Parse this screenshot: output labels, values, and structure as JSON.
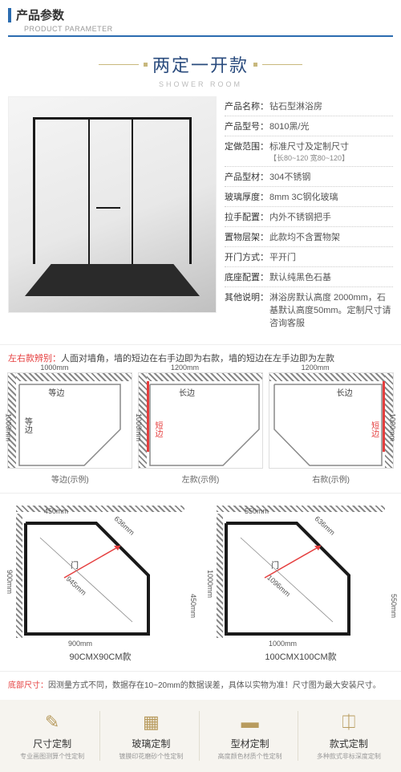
{
  "header": {
    "title": "产品参数",
    "subtitle": "PRODUCT PARAMETER"
  },
  "style": {
    "title": "两定一开款",
    "subtitle": "SHOWER ROOM"
  },
  "specs": [
    {
      "label": "产品名称：",
      "value": "钻石型淋浴房"
    },
    {
      "label": "产品型号：",
      "value": "8010黑/光"
    },
    {
      "label": "定做范围：",
      "value": "标准尺寸及定制尺寸",
      "sub": "【长80~120 宽80~120】"
    },
    {
      "label": "产品型材：",
      "value": "304不锈钢"
    },
    {
      "label": "玻璃厚度：",
      "value": "8mm 3C钢化玻璃"
    },
    {
      "label": "拉手配置：",
      "value": "内外不锈钢把手"
    },
    {
      "label": "置物层架：",
      "value": "此款均不含置物架"
    },
    {
      "label": "开门方式：",
      "value": "平开门"
    },
    {
      "label": "底座配置：",
      "value": "默认纯黑色石基"
    },
    {
      "label": "其他说明：",
      "value": "淋浴房默认高度 2000mm，石基默认高度50mm。定制尺寸请咨询客服"
    }
  ],
  "distinguish": {
    "label": "左右款辨别：",
    "text": "人面对墙角，墙的短边在右手边即为右款，墙的短边在左手边即为左款"
  },
  "diagrams": [
    {
      "caption": "等边(示例)",
      "top_dim": "1000mm",
      "left_dim": "1000mm",
      "lbl1": "等边",
      "lbl2": "等边"
    },
    {
      "caption": "左款(示例)",
      "top_dim": "1200mm",
      "left_dim": "1000mm",
      "lbl1": "长边",
      "short": "短边",
      "short_side": "left"
    },
    {
      "caption": "右款(示例)",
      "top_dim": "1200mm",
      "right_dim": "1000mm",
      "lbl1": "长边",
      "short": "短边",
      "short_side": "right"
    }
  ],
  "size_diagrams": [
    {
      "caption": "90CMX90CM款",
      "top_half": "450mm",
      "diag_top": "636mm",
      "left_half": "900mm",
      "inner_diag": "945mm",
      "right_half": "450mm",
      "bottom": "900mm",
      "door": "门"
    },
    {
      "caption": "100CMX100CM款",
      "top_half": "550mm",
      "diag_top": "636mm",
      "left_half": "1000mm",
      "inner_diag": "1096mm",
      "right_half": "550mm",
      "bottom": "1000mm",
      "door": "门"
    }
  ],
  "bottom_note": {
    "label": "底部尺寸：",
    "text": "因测量方式不同，数据存在10~20mm的数据误差，具体以实物为准！尺寸图为最大安装尺寸。"
  },
  "footer": [
    {
      "icon": "✎",
      "title": "尺寸定制",
      "sub": "专业画图测算个性定制"
    },
    {
      "icon": "▦",
      "title": "玻璃定制",
      "sub": "镀膜印花磨砂个性定制"
    },
    {
      "icon": "▬",
      "title": "型材定制",
      "sub": "高度颜色材质个性定制"
    },
    {
      "icon": "⎅",
      "title": "款式定制",
      "sub": "多种款式非标深度定制"
    }
  ],
  "colors": {
    "accent": "#2b6cb0",
    "gold": "#b89b5e",
    "red": "#e53e3e"
  }
}
